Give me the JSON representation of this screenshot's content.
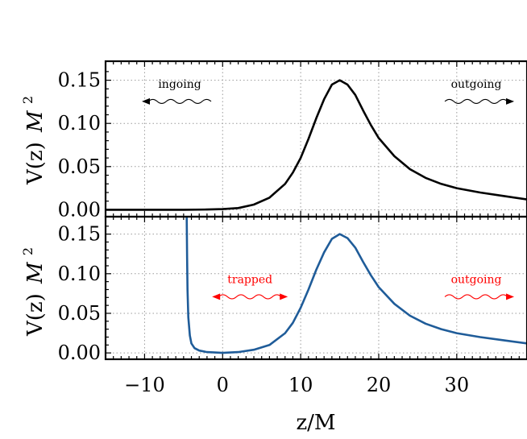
{
  "chart_data": [
    {
      "type": "line",
      "panel": "top",
      "ylabel": "V(z) M²",
      "ylabel_main": "V(z)",
      "ylabel_sym": "M",
      "ylabel_exp": "2",
      "xlim": [
        -15,
        39
      ],
      "ylim": [
        -0.008,
        0.172
      ],
      "yticks": [
        0.0,
        0.05,
        0.1,
        0.15
      ],
      "ytick_labels": [
        "0.00",
        "0.05",
        "0.10",
        "0.15"
      ],
      "xticks": [
        -10,
        0,
        10,
        20,
        30
      ],
      "grid": true,
      "series": [
        {
          "color": "#000000",
          "x": [
            -15,
            -10,
            -5,
            -2,
            0,
            2,
            4,
            6,
            8,
            9,
            10,
            11,
            12,
            13,
            14,
            15,
            16,
            17,
            18,
            19,
            20,
            22,
            24,
            26,
            28,
            30,
            33,
            36,
            39
          ],
          "y": [
            0.0,
            0.0,
            0.0,
            0.0003,
            0.0008,
            0.002,
            0.006,
            0.014,
            0.03,
            0.043,
            0.06,
            0.082,
            0.106,
            0.128,
            0.145,
            0.15,
            0.145,
            0.133,
            0.115,
            0.098,
            0.083,
            0.062,
            0.047,
            0.037,
            0.03,
            0.025,
            0.02,
            0.016,
            0.012
          ]
        }
      ],
      "annotations": [
        {
          "text": "ingoing",
          "x": -5.5,
          "y": 0.132,
          "color": "#000000",
          "arrow": "left"
        },
        {
          "text": "outgoing",
          "x": 32.5,
          "y": 0.132,
          "color": "#000000",
          "arrow": "right"
        }
      ]
    },
    {
      "type": "line",
      "panel": "bottom",
      "xlabel": "z/M",
      "ylabel": "V(z) M²",
      "ylabel_main": "V(z)",
      "ylabel_sym": "M",
      "ylabel_exp": "2",
      "xlim": [
        -15,
        39
      ],
      "ylim": [
        -0.008,
        0.172
      ],
      "yticks": [
        0.0,
        0.05,
        0.1,
        0.15
      ],
      "ytick_labels": [
        "0.00",
        "0.05",
        "0.10",
        "0.15"
      ],
      "xticks": [
        -10,
        0,
        10,
        20,
        30
      ],
      "xtick_labels": [
        "−10",
        "0",
        "10",
        "20",
        "30"
      ],
      "grid": true,
      "series": [
        {
          "color": "#1f5c99",
          "x": [
            -4.6,
            -4.55,
            -4.5,
            -4.4,
            -4.2,
            -4.0,
            -3.6,
            -3.0,
            -2,
            0,
            2,
            4,
            6,
            8,
            9,
            10,
            11,
            12,
            13,
            14,
            15,
            16,
            17,
            18,
            19,
            20,
            22,
            24,
            26,
            28,
            30,
            33,
            36,
            39
          ],
          "y": [
            0.172,
            0.12,
            0.08,
            0.045,
            0.022,
            0.012,
            0.006,
            0.003,
            0.001,
            0.0,
            0.001,
            0.004,
            0.01,
            0.025,
            0.038,
            0.057,
            0.08,
            0.105,
            0.127,
            0.144,
            0.15,
            0.145,
            0.133,
            0.115,
            0.098,
            0.083,
            0.062,
            0.047,
            0.037,
            0.03,
            0.025,
            0.02,
            0.016,
            0.012
          ]
        }
      ],
      "annotations": [
        {
          "text": "trapped",
          "x": 3.5,
          "y": 0.078,
          "color": "#ff0000",
          "arrow": "both"
        },
        {
          "text": "outgoing",
          "x": 32.5,
          "y": 0.078,
          "color": "#ff0000",
          "arrow": "right"
        }
      ]
    }
  ]
}
